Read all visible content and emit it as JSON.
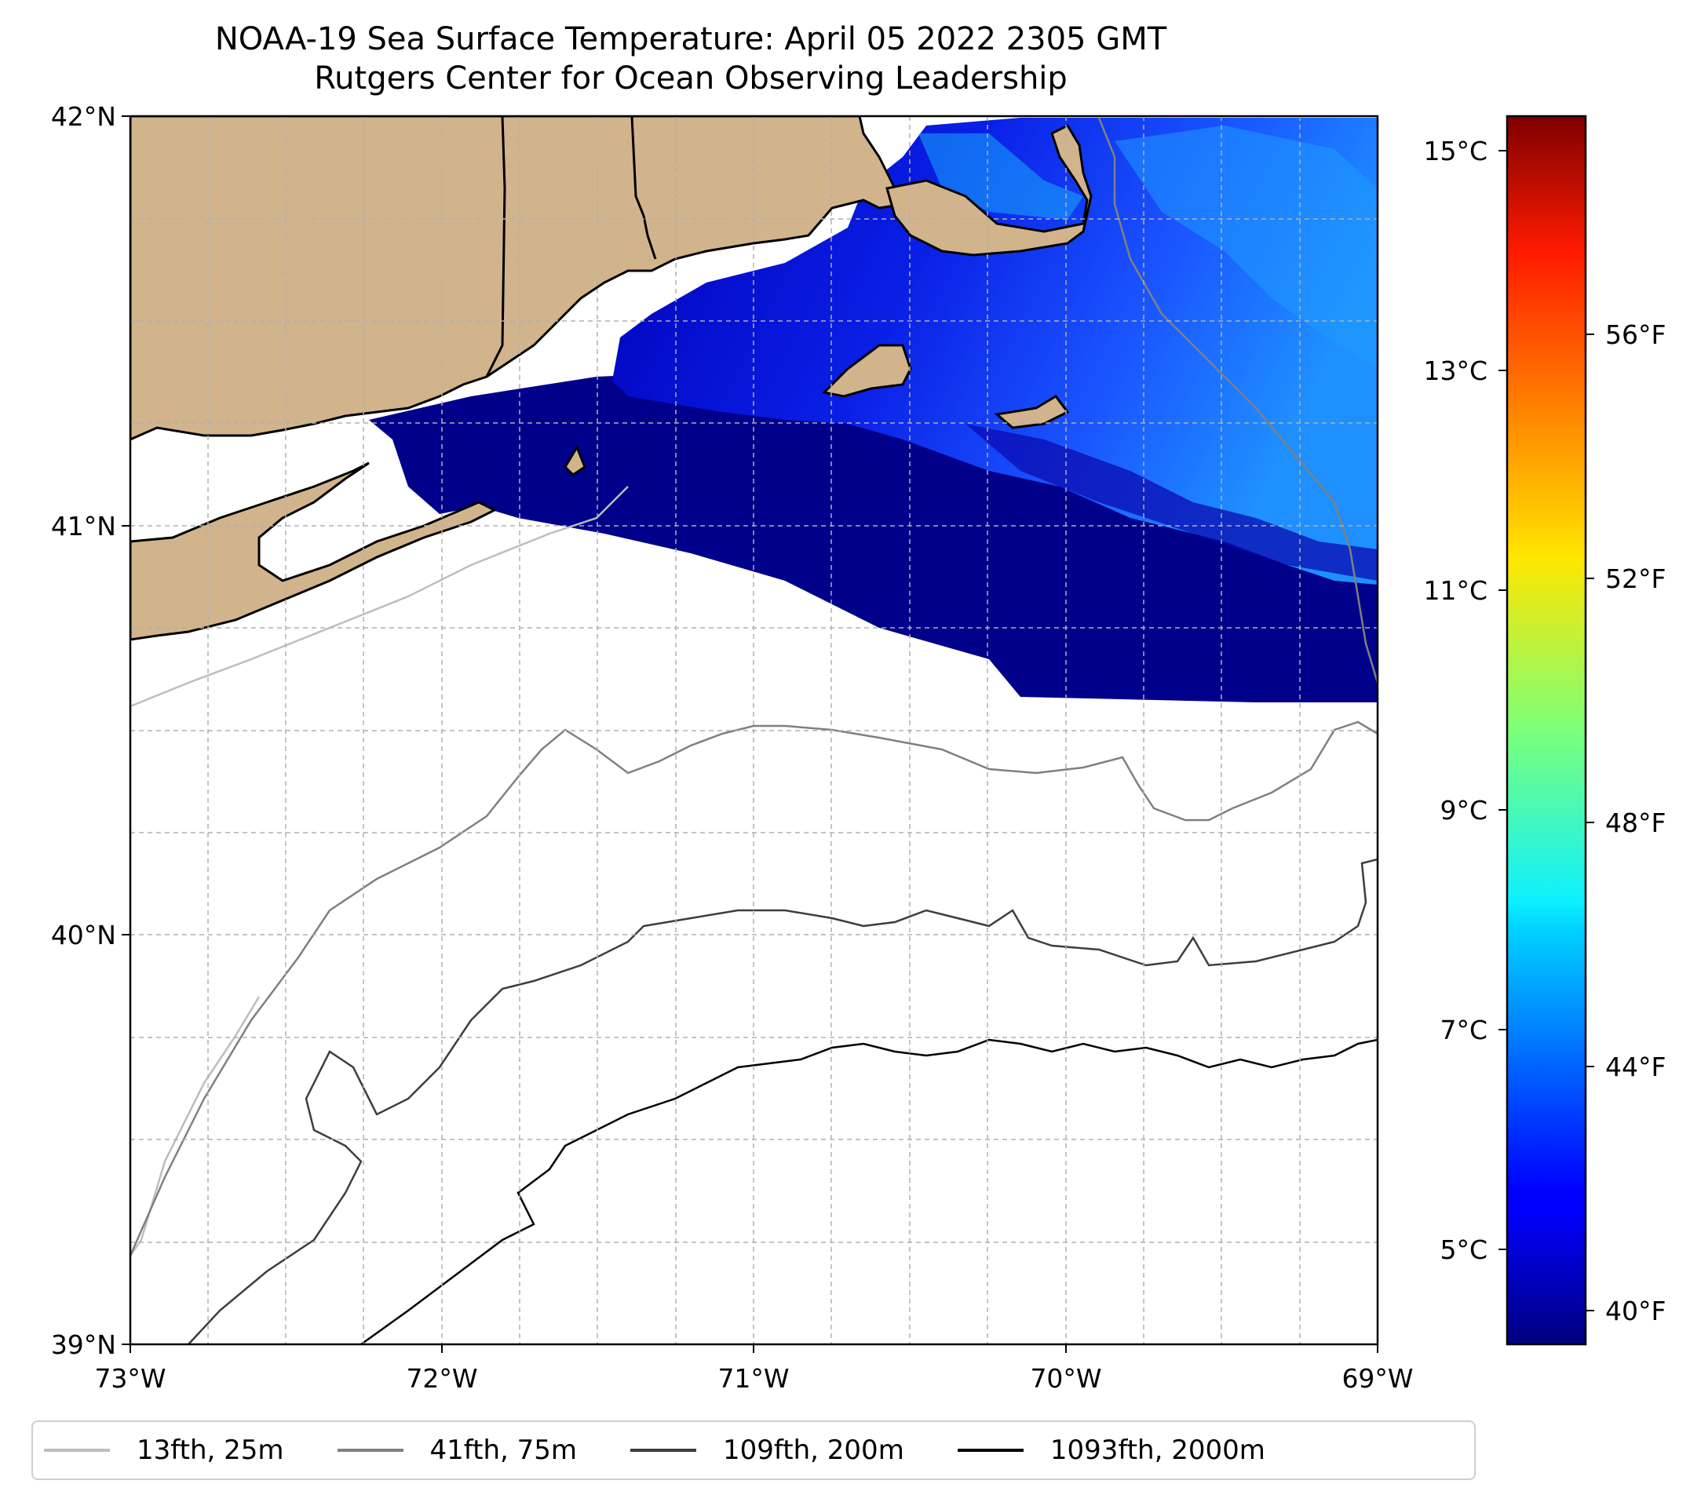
{
  "title": {
    "line1": "NOAA-19 Sea Surface Temperature: April 05 2022 2305 GMT",
    "line2": "Rutgers Center for Ocean Observing Leadership"
  },
  "map": {
    "lon_ticks": [
      "73°W",
      "72°W",
      "71°W",
      "70°W",
      "69°W"
    ],
    "lat_ticks": [
      "42°N",
      "41°N",
      "40°N",
      "39°N"
    ],
    "extent": {
      "lon": [
        -73,
        -69
      ],
      "lat": [
        39,
        42
      ]
    },
    "grid": "dashed",
    "land_color": "#d2b48c",
    "legend_position": "bottom"
  },
  "colorbar": {
    "celsius_ticks": [
      "15°C",
      "13°C",
      "11°C",
      "9°C",
      "7°C",
      "5°C"
    ],
    "fahrenheit_ticks": [
      "56°F",
      "52°F",
      "48°F",
      "44°F",
      "40°F"
    ],
    "colormap": "jet",
    "range_c": [
      4.4,
      15.3
    ]
  },
  "legend": {
    "items": [
      {
        "label": "13fth, 25m",
        "color": "#bdbdbd"
      },
      {
        "label": "41fth, 75m",
        "color": "#808080"
      },
      {
        "label": "109fth, 200m",
        "color": "#3d3d3d"
      },
      {
        "label": "1093fth, 2000m",
        "color": "#000000"
      }
    ]
  }
}
